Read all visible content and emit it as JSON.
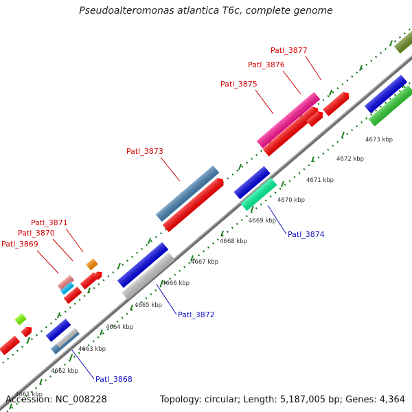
{
  "title": "Pseudoalteromonas atlantica T6c, complete genome",
  "footer": {
    "accession": "Accession: NC_008228",
    "topology": "Topology: circular; Length: 5,187,005 bp; Genes: 4,364"
  },
  "kbp_labels": [
    "4661 kbp",
    "4662 kbp",
    "4663 kbp",
    "4664 kbp",
    "4665 kbp",
    "4666 kbp",
    "4667 kbp",
    "4668 kbp",
    "4669 kbp",
    "4670 kbp",
    "4671 kbp",
    "4672 kbp",
    "4673 kbp"
  ],
  "genes_top": [
    {
      "label": "Patl_3869",
      "color": "#d40000"
    },
    {
      "label": "Patl_3870",
      "color": "#d40000"
    },
    {
      "label": "Patl_3871",
      "color": "#d40000"
    },
    {
      "label": "Patl_3873",
      "color": "#d40000"
    },
    {
      "label": "Patl_3875",
      "color": "#d40000"
    },
    {
      "label": "Patl_3876",
      "color": "#d40000"
    },
    {
      "label": "Patl_3877",
      "color": "#d40000"
    }
  ],
  "genes_bottom": [
    {
      "label": "Patl_3868",
      "color": "#1010c0"
    },
    {
      "label": "Patl_3872",
      "color": "#1010c0"
    },
    {
      "label": "Patl_3874",
      "color": "#1010c0"
    }
  ],
  "feature_colors": {
    "red": "#ff0000",
    "blue": "#0000e6",
    "steelblue": "#4682b4",
    "pink": "#ff1493",
    "lightpink": "#f08080",
    "cyan": "#00bfff",
    "orange": "#ff8c00",
    "lime": "#80ff00",
    "green": "#32cd32",
    "mint": "#00fa9a",
    "silver": "#c8c8c8",
    "olive": "#6b8e23",
    "backbone": "#8a8a8a",
    "tick": "#1a7a1a"
  }
}
